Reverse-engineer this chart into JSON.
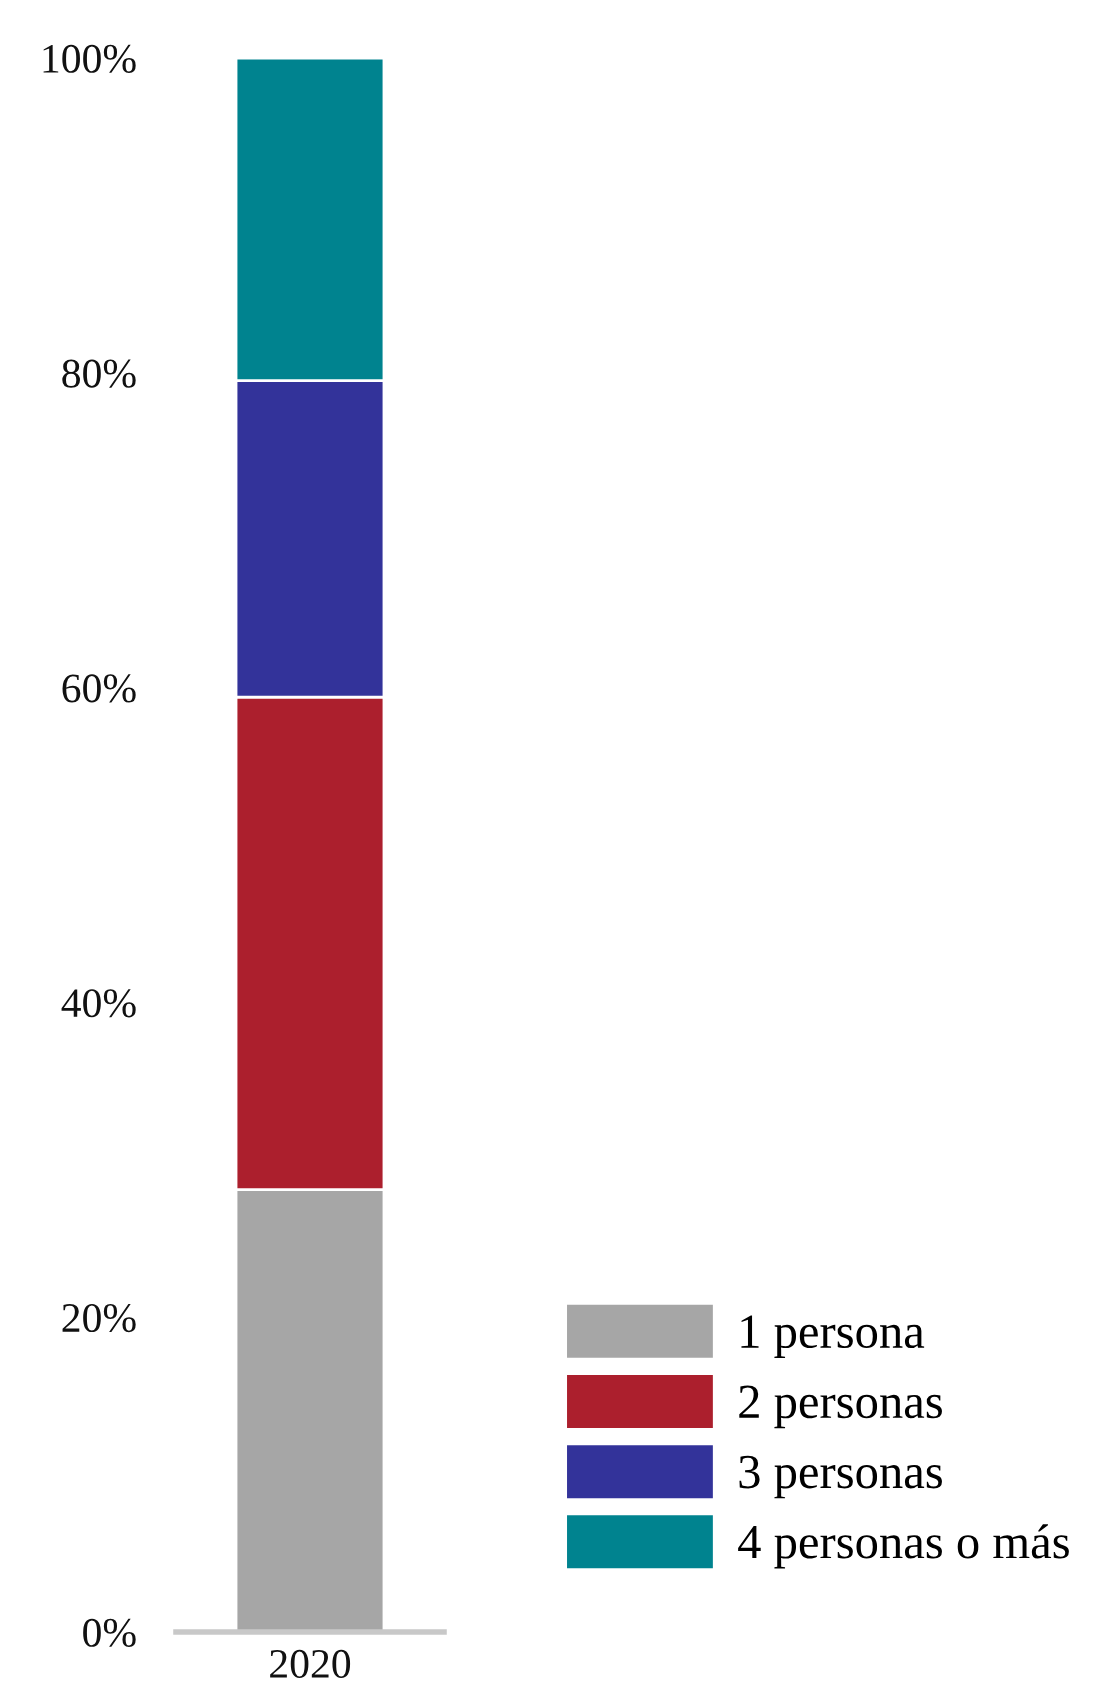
{
  "chart_data": {
    "type": "bar",
    "stacked": true,
    "categories": [
      "2020"
    ],
    "series": [
      {
        "name": "1 persona",
        "color": "#a6a6a6",
        "values": [
          28.1
        ]
      },
      {
        "name": "2 personas",
        "color": "#ac1f2d",
        "values": [
          31.3
        ]
      },
      {
        "name": "3 personas",
        "color": "#33339a",
        "values": [
          20.1
        ]
      },
      {
        "name": "4 personas o más",
        "color": "#00838f",
        "values": [
          20.5
        ]
      }
    ],
    "ylim": [
      0,
      100
    ],
    "yticks": [
      {
        "value": 0,
        "label": "0%"
      },
      {
        "value": 20,
        "label": "20%"
      },
      {
        "value": 40,
        "label": "40%"
      },
      {
        "value": 60,
        "label": "60%"
      },
      {
        "value": 80,
        "label": "80%"
      },
      {
        "value": 100,
        "label": "100%"
      }
    ],
    "grid": false,
    "legend": "bottom right"
  }
}
